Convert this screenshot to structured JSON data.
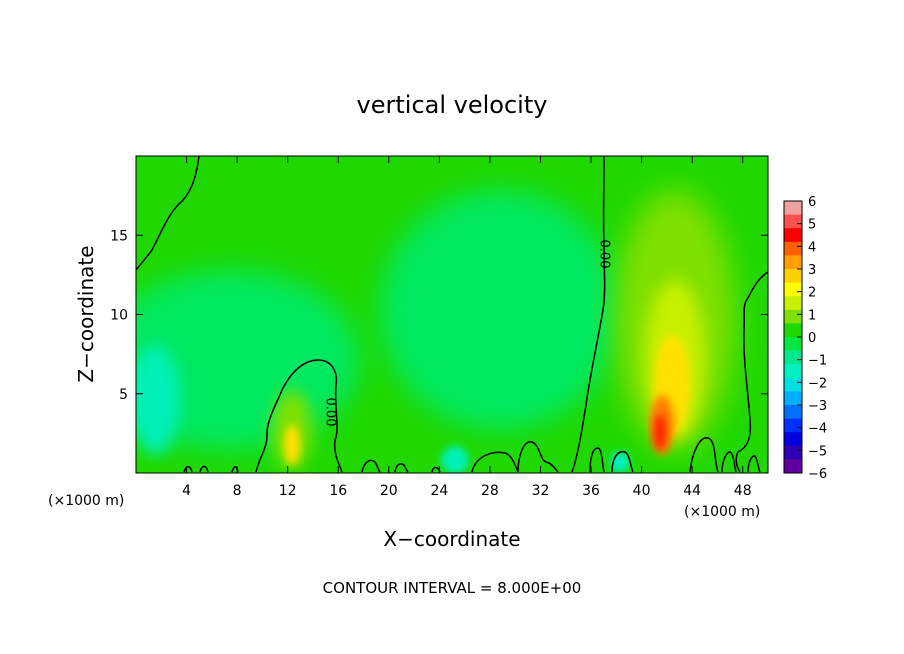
{
  "chart_data": {
    "type": "heatmap",
    "title": "vertical velocity",
    "xlabel": "X−coordinate",
    "ylabel": "Z−coordinate",
    "x_unit": "(×1000 m)",
    "x_unit_right": "(×1000 m)",
    "xlim": [
      0,
      50
    ],
    "ylim": [
      0,
      20
    ],
    "x_ticks": [
      4,
      8,
      12,
      16,
      20,
      24,
      28,
      32,
      36,
      40,
      44,
      48
    ],
    "y_ticks": [
      5,
      10,
      15
    ],
    "colorbar": {
      "ticks": [
        "6",
        "5",
        "4",
        "3",
        "2",
        "1",
        "0",
        "−1",
        "−2",
        "−3",
        "−4",
        "−5",
        "−6"
      ],
      "range": [
        -6,
        6
      ],
      "colors": [
        "#f0a0a0",
        "#ff5050",
        "#ff0000",
        "#ff6000",
        "#ffa000",
        "#ffd000",
        "#ffff00",
        "#c8f000",
        "#80e000",
        "#20d800",
        "#00e840",
        "#00e890",
        "#00f0c0",
        "#00e0e0",
        "#00b0ff",
        "#0070ff",
        "#0030ff",
        "#0000e0",
        "#3000b0",
        "#6000a0"
      ]
    },
    "contour_label": "0.00",
    "contour_interval_text": "CONTOUR INTERVAL = 8.000E+00",
    "features": [
      {
        "x": 41.5,
        "z": 2.5,
        "value": 4.5
      },
      {
        "x": 42.0,
        "z": 5.5,
        "value": 2.2
      },
      {
        "x": 42.0,
        "z": 10.0,
        "value": 0.8
      },
      {
        "x": 12.5,
        "z": 1.8,
        "value": 2.0
      },
      {
        "x": 1.5,
        "z": 4.0,
        "value": -1.8
      },
      {
        "x": 25.0,
        "z": 0.6,
        "value": -1.5
      },
      {
        "x": 30.0,
        "z": 10.0,
        "value": -0.5
      }
    ]
  }
}
